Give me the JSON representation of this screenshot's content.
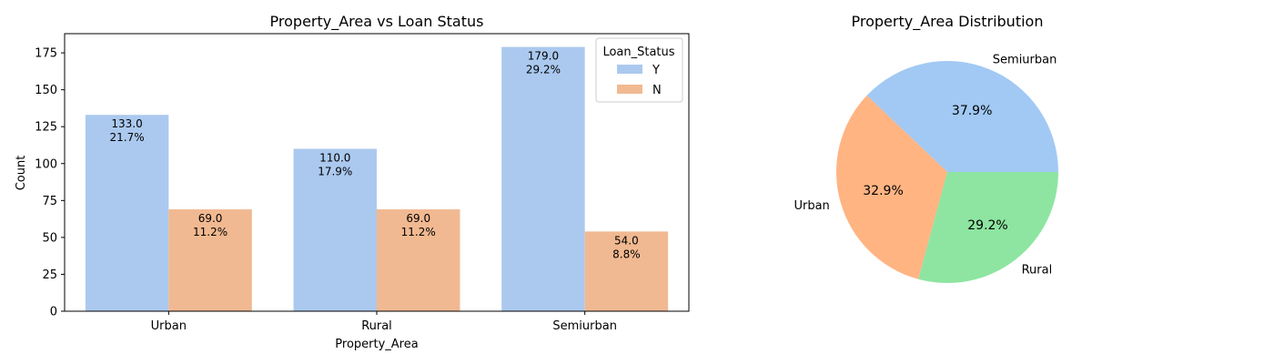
{
  "colors": {
    "bar_Y": "#abc9ef",
    "bar_N": "#f1b991",
    "pie_semiurban": "#a1c9f4",
    "pie_urban": "#ffb482",
    "pie_rural": "#8de5a1"
  },
  "chart_data": [
    {
      "type": "bar",
      "title": "Property_Area vs Loan Status",
      "xlabel": "Property_Area",
      "ylabel": "Count",
      "categories": [
        "Urban",
        "Rural",
        "Semiurban"
      ],
      "series": [
        {
          "name": "Y",
          "values": [
            133.0,
            110.0,
            179.0
          ],
          "labels": [
            "133.0",
            "110.0",
            "179.0"
          ],
          "pct_labels": [
            "21.7%",
            "17.9%",
            "29.2%"
          ]
        },
        {
          "name": "N",
          "values": [
            69.0,
            69.0,
            54.0
          ],
          "labels": [
            "69.0",
            "69.0",
            "54.0"
          ],
          "pct_labels": [
            "11.2%",
            "11.2%",
            "8.8%"
          ]
        }
      ],
      "ylim": [
        0,
        188
      ],
      "yticks": [
        0,
        25,
        50,
        75,
        100,
        125,
        150,
        175
      ],
      "ytick_labels": [
        "0",
        "25",
        "50",
        "75",
        "100",
        "125",
        "150",
        "175"
      ],
      "legend": {
        "title": "Loan_Status",
        "placement": "top-right",
        "entries": [
          "Y",
          "N"
        ]
      },
      "grid": false
    },
    {
      "type": "pie",
      "title": "Property_Area Distribution",
      "slices": [
        {
          "label": "Semiurban",
          "value": 37.9,
          "pct_label": "37.9%"
        },
        {
          "label": "Urban",
          "value": 32.9,
          "pct_label": "32.9%"
        },
        {
          "label": "Rural",
          "value": 29.2,
          "pct_label": "29.2%"
        }
      ]
    }
  ]
}
